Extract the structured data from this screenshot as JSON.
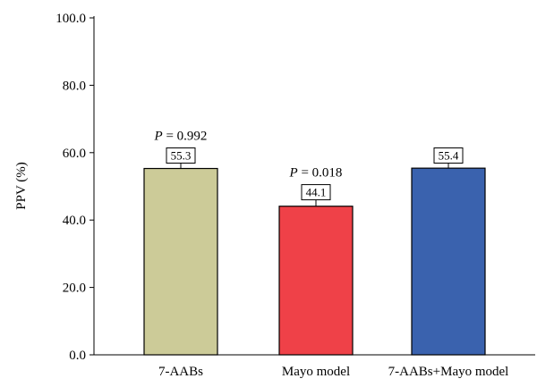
{
  "chart_data": {
    "type": "bar",
    "title": "",
    "xlabel": "",
    "ylabel": "PPV (%)",
    "ylim": [
      0,
      100
    ],
    "yticks": [
      "0.0",
      "20.0",
      "40.0",
      "60.0",
      "80.0",
      "100.0"
    ],
    "categories": [
      "7-AABs",
      "Mayo model",
      "7-AABs+Mayo model"
    ],
    "values": [
      55.3,
      44.1,
      55.4
    ],
    "value_labels": [
      "55.3",
      "44.1",
      "55.4"
    ],
    "error_upper": [
      56.9,
      46.0,
      56.9
    ],
    "colors": [
      "#cccb98",
      "#ef4148",
      "#3a62ae"
    ],
    "annotations": [
      {
        "prefix": "P",
        "text": " = 0.992",
        "category": 0
      },
      {
        "prefix": "P",
        "text": " = 0.018",
        "category": 1
      },
      null
    ],
    "grid": false,
    "legend": "none"
  }
}
